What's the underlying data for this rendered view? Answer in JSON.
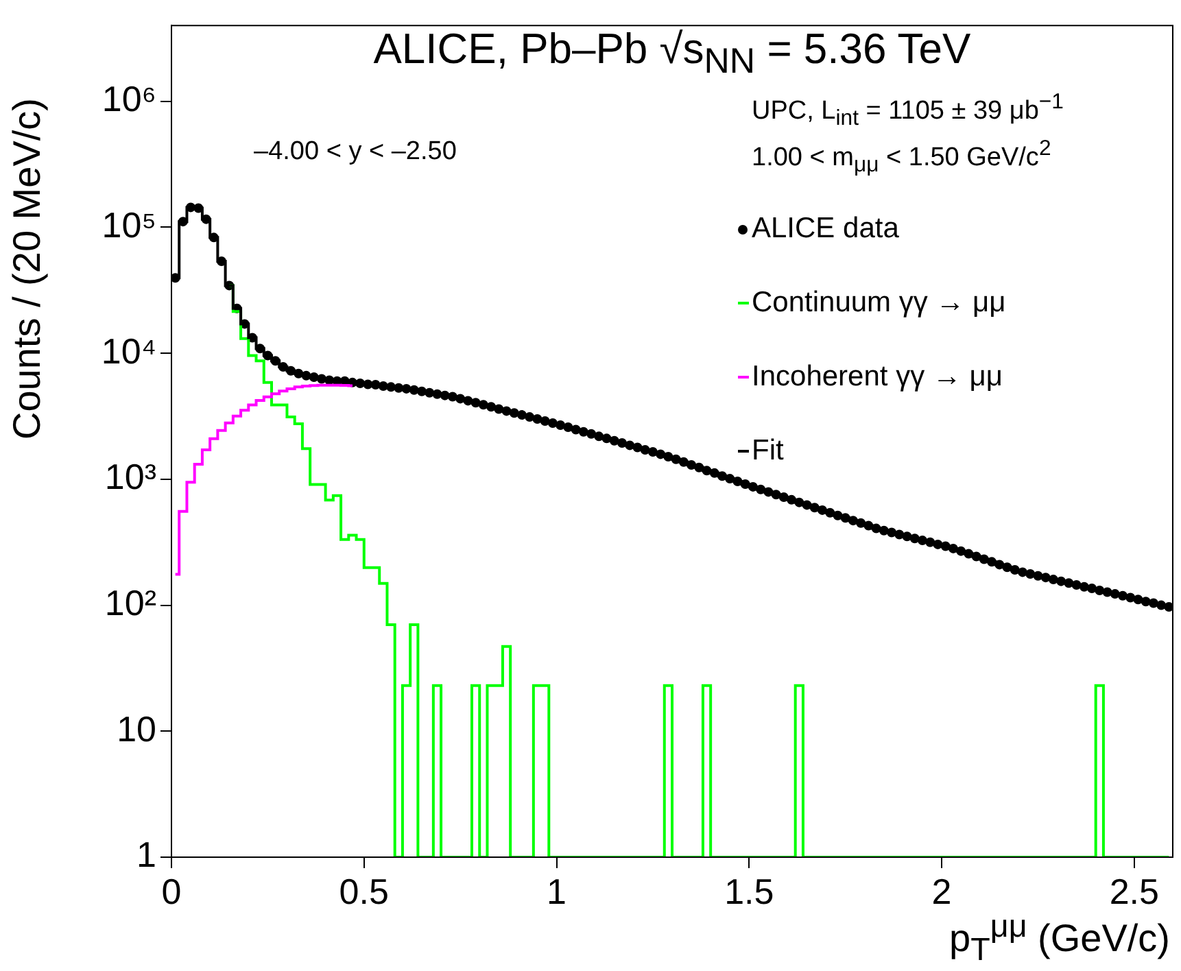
{
  "chart_data": {
    "type": "step",
    "title": "ALICE, Pb–Pb √s$_{NN}$ = 5.36 TeV",
    "xlabel": "p$_{T}$$^{μμ}$ (GeV/c)",
    "ylabel": "Counts / (20 MeV/c)",
    "annotations": [
      "UPC, L$_{int}$ = 1105 ± 39 μb$^{−1}$",
      "1.00 < m$_{μμ}$ < 1.50 GeV/c$^{2}$",
      "–4.00 < y < –2.50"
    ],
    "x": [
      0.01,
      0.03,
      0.05,
      0.07,
      0.09,
      0.11,
      0.13,
      0.15,
      0.17,
      0.19,
      0.21,
      0.23,
      0.25,
      0.27,
      0.29,
      0.31,
      0.33,
      0.35,
      0.37,
      0.39,
      0.41,
      0.43,
      0.45,
      0.47,
      0.49,
      0.51,
      0.53,
      0.55,
      0.57,
      0.59,
      0.61,
      0.63,
      0.65,
      0.67,
      0.69,
      0.71,
      0.73,
      0.75,
      0.77,
      0.79,
      0.81,
      0.83,
      0.85,
      0.87,
      0.89,
      0.91,
      0.93,
      0.95,
      0.97,
      0.99,
      1.01,
      1.03,
      1.05,
      1.07,
      1.09,
      1.11,
      1.13,
      1.15,
      1.17,
      1.19,
      1.21,
      1.23,
      1.25,
      1.27,
      1.29,
      1.31,
      1.33,
      1.35,
      1.37,
      1.39,
      1.41,
      1.43,
      1.45,
      1.47,
      1.49,
      1.51,
      1.53,
      1.55,
      1.57,
      1.59,
      1.61,
      1.63,
      1.65,
      1.67,
      1.69,
      1.71,
      1.73,
      1.75,
      1.77,
      1.79,
      1.81,
      1.83,
      1.85,
      1.87,
      1.89,
      1.91,
      1.93,
      1.95,
      1.97,
      1.99,
      2.01,
      2.03,
      2.05,
      2.07,
      2.09,
      2.11,
      2.13,
      2.15,
      2.17,
      2.19,
      2.21,
      2.23,
      2.25,
      2.27,
      2.29,
      2.31,
      2.33,
      2.35,
      2.37,
      2.39,
      2.41,
      2.43,
      2.45,
      2.47,
      2.49,
      2.51,
      2.53,
      2.55,
      2.57,
      2.59
    ],
    "series": [
      {
        "name": "ALICE data",
        "type": "scatter",
        "marker": "circle",
        "color": "#000000",
        "values": [
          39700,
          111000,
          144000,
          142000,
          116000,
          83000,
          53800,
          34500,
          22700,
          17100,
          13300,
          10900,
          9600,
          8700,
          7800,
          7260,
          6900,
          6640,
          6470,
          6270,
          6110,
          6010,
          6010,
          5860,
          5770,
          5670,
          5630,
          5490,
          5400,
          5310,
          5230,
          5110,
          4980,
          4860,
          4740,
          4630,
          4520,
          4360,
          4200,
          4050,
          3900,
          3760,
          3610,
          3480,
          3360,
          3240,
          3120,
          3010,
          2900,
          2790,
          2690,
          2590,
          2480,
          2380,
          2290,
          2190,
          2110,
          2020,
          1940,
          1860,
          1790,
          1710,
          1650,
          1580,
          1510,
          1440,
          1370,
          1300,
          1240,
          1170,
          1120,
          1060,
          1010,
          962,
          914,
          871,
          830,
          793,
          755,
          721,
          687,
          655,
          625,
          596,
          569,
          542,
          516,
          493,
          470,
          449,
          428,
          407,
          391,
          378,
          364,
          352,
          339,
          327,
          316,
          304,
          294,
          282,
          269,
          256,
          244,
          232,
          221,
          210,
          200,
          191,
          183,
          177,
          171,
          166,
          160,
          155,
          150,
          145,
          140,
          136,
          131,
          127,
          123,
          119,
          115,
          111,
          107,
          104,
          100,
          97
        ]
      },
      {
        "name": "Continuum γγ → μμ",
        "color": "#00ff00",
        "values": [
          null,
          null,
          null,
          null,
          null,
          null,
          null,
          34500,
          21500,
          13100,
          9600,
          8700,
          5860,
          3890,
          3890,
          3120,
          2760,
          1750,
          910,
          910,
          683,
          741,
          332,
          360,
          332,
          199,
          199,
          149,
          70,
          1,
          23,
          70,
          1,
          1,
          23,
          1,
          1,
          1,
          1,
          23,
          1,
          23,
          23,
          47,
          1,
          1,
          1,
          23,
          23,
          1,
          1,
          1,
          1,
          1,
          1,
          1,
          1,
          1,
          1,
          1,
          1,
          1,
          1,
          1,
          23,
          1,
          1,
          1,
          1,
          23,
          1,
          1,
          1,
          1,
          1,
          1,
          1,
          1,
          1,
          1,
          1,
          23,
          1,
          1,
          1,
          1,
          1,
          1,
          1,
          1,
          1,
          1,
          1,
          1,
          1,
          1,
          1,
          1,
          1,
          1,
          1,
          1,
          1,
          1,
          1,
          1,
          1,
          1,
          1,
          1,
          1,
          1,
          1,
          1,
          1,
          1,
          1,
          1,
          1,
          1,
          23,
          1,
          1,
          1,
          1,
          1,
          1,
          1,
          1,
          1
        ]
      },
      {
        "name": "Incoherent γγ → μμ",
        "color": "#ff00ff",
        "values": [
          176,
          556,
          948,
          1315,
          1710,
          2100,
          2440,
          2800,
          3170,
          3530,
          3890,
          4220,
          4510,
          4770,
          5020,
          5230,
          5400,
          5490,
          5540,
          5580,
          5580,
          5580,
          5560,
          5530,
          null,
          null,
          null,
          null,
          null,
          null,
          null,
          null,
          null,
          null,
          null,
          null,
          null,
          null,
          null,
          null,
          null,
          null,
          null,
          null,
          null,
          null,
          null,
          null,
          null,
          null,
          null,
          null,
          null,
          null,
          null,
          null,
          null,
          null,
          null,
          null,
          null,
          null,
          null,
          null,
          null,
          null,
          null,
          null,
          null,
          null,
          null,
          null,
          null,
          null,
          null,
          null,
          null,
          null,
          null,
          null,
          null,
          null,
          null,
          null,
          null,
          null,
          null,
          null,
          null,
          null,
          null,
          null,
          null,
          null,
          null,
          null,
          null,
          null,
          null,
          null,
          null,
          null,
          null,
          null,
          null,
          null,
          null,
          null,
          null,
          null,
          null,
          null,
          null,
          null,
          null,
          null,
          null,
          null,
          null,
          null,
          null,
          null,
          null,
          null,
          null,
          null,
          null,
          null,
          null,
          null
        ]
      },
      {
        "name": "Fit",
        "color": "#000000",
        "values": [
          39700,
          111000,
          144000,
          142000,
          116000,
          83000,
          53800,
          34500,
          22700,
          17100,
          13300,
          10900,
          9600,
          8700,
          7800,
          7260,
          6900,
          6640,
          6470,
          6270,
          6110,
          6010,
          6010,
          5860,
          5770,
          5670,
          5630,
          5490,
          5400,
          5310,
          5230,
          5110,
          4980,
          4860,
          4740,
          4630,
          4520,
          4360,
          4200,
          4050,
          3900,
          3760,
          3610,
          3480,
          3360,
          3240,
          3120,
          3010,
          2900,
          2790,
          2690,
          2590,
          2480,
          2380,
          2290,
          2190,
          2110,
          2020,
          1940,
          1860,
          1790,
          1710,
          1650,
          1580,
          1510,
          1440,
          1370,
          1300,
          1240,
          1170,
          1120,
          1060,
          1010,
          962,
          914,
          871,
          830,
          793,
          755,
          721,
          687,
          655,
          625,
          596,
          569,
          542,
          516,
          493,
          470,
          449,
          428,
          407,
          391,
          378,
          364,
          352,
          339,
          327,
          316,
          304,
          294,
          282,
          269,
          256,
          244,
          232,
          221,
          210,
          200,
          191,
          183,
          177,
          171,
          166,
          160,
          155,
          150,
          145,
          140,
          136,
          131,
          127,
          123,
          119,
          115,
          111,
          107,
          104,
          100,
          97
        ]
      }
    ],
    "log": "y",
    "grid": false,
    "legend": "right",
    "xlim": [
      0,
      2.6
    ],
    "xticks": [
      0,
      0.5,
      1,
      1.5,
      2,
      2.5
    ],
    "ylim": [
      1,
      4000000
    ],
    "yticks": [
      1,
      10,
      {
        "value": 100,
        "label": "10²"
      },
      {
        "value": 1000,
        "label": "10³"
      },
      {
        "value": 10000,
        "label": "10⁴"
      },
      {
        "value": 100000,
        "label": "10⁵"
      },
      {
        "value": 1000000,
        "label": "10⁶"
      }
    ]
  }
}
